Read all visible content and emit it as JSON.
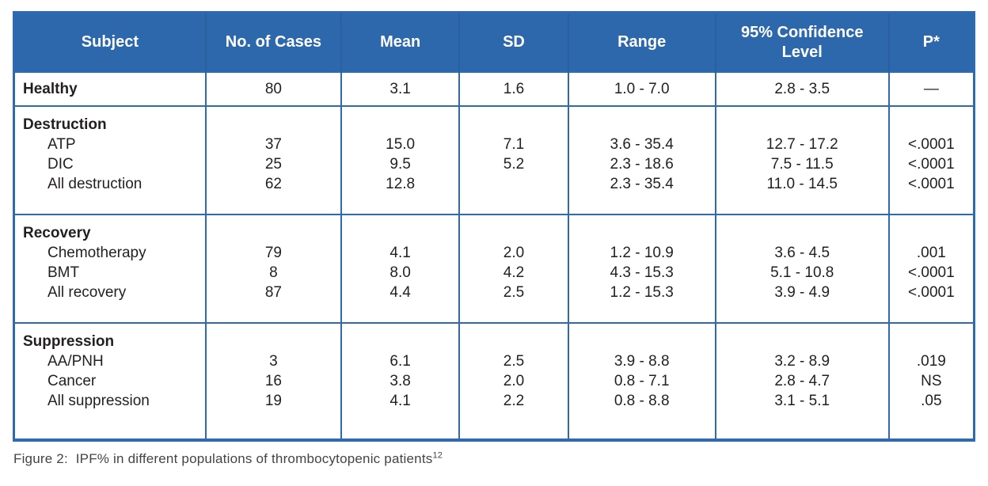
{
  "colors": {
    "primary_blue": "#2d68ad",
    "border_blue": "#2f6ab0",
    "header_text": "#ffffff",
    "body_text": "#231f20"
  },
  "table": {
    "columns": [
      {
        "key": "subject",
        "label": "Subject",
        "width_pct": 19.9
      },
      {
        "key": "cases",
        "label": "No. of Cases",
        "width_pct": 14.15
      },
      {
        "key": "mean",
        "label": "Mean",
        "width_pct": 12.34
      },
      {
        "key": "sd",
        "label": "SD",
        "width_pct": 11.35
      },
      {
        "key": "range",
        "label": "Range",
        "width_pct": 15.38
      },
      {
        "key": "ci",
        "label": "95% Confidence Level",
        "width_pct": 18.1
      },
      {
        "key": "p",
        "label": "P*",
        "width_pct": 8.78
      }
    ],
    "sections": [
      {
        "label": "Healthy",
        "values": {
          "cases": "80",
          "mean": "3.1",
          "sd": "1.6",
          "range": "1.0 - 7.0",
          "ci": "2.8 - 3.5",
          "p": "—"
        },
        "rows": []
      },
      {
        "label": "Destruction",
        "rows": [
          {
            "subject": "ATP",
            "cases": "37",
            "mean": "15.0",
            "sd": "7.1",
            "range": "3.6 - 35.4",
            "ci": "12.7 - 17.2",
            "p": "<.0001"
          },
          {
            "subject": "DIC",
            "cases": "25",
            "mean": "9.5",
            "sd": "5.2",
            "range": "2.3 - 18.6",
            "ci": "7.5 - 11.5",
            "p": "<.0001"
          },
          {
            "subject": "All destruction",
            "cases": "62",
            "mean": "12.8",
            "sd": "",
            "range": "2.3 - 35.4",
            "ci": "11.0 - 14.5",
            "p": "<.0001"
          }
        ]
      },
      {
        "label": "Recovery",
        "rows": [
          {
            "subject": "Chemotherapy",
            "cases": "79",
            "mean": "4.1",
            "sd": "2.0",
            "range": "1.2 - 10.9",
            "ci": "3.6 - 4.5",
            "p": ".001"
          },
          {
            "subject": "BMT",
            "cases": "8",
            "mean": "8.0",
            "sd": "4.2",
            "range": "4.3 - 15.3",
            "ci": "5.1 - 10.8",
            "p": "<.0001"
          },
          {
            "subject": "All recovery",
            "cases": "87",
            "mean": "4.4",
            "sd": "2.5",
            "range": "1.2 - 15.3",
            "ci": "3.9 - 4.9",
            "p": "<.0001"
          }
        ]
      },
      {
        "label": "Suppression",
        "rows": [
          {
            "subject": "AA/PNH",
            "cases": "3",
            "mean": "6.1",
            "sd": "2.5",
            "range": "3.9 - 8.8",
            "ci": "3.2 - 8.9",
            "p": ".019"
          },
          {
            "subject": "Cancer",
            "cases": "16",
            "mean": "3.8",
            "sd": "2.0",
            "range": "0.8 - 7.1",
            "ci": "2.8 - 4.7",
            "p": "NS"
          },
          {
            "subject": "All suppression",
            "cases": "19",
            "mean": "4.1",
            "sd": "2.2",
            "range": "0.8 - 8.8",
            "ci": "3.1 - 5.1",
            "p": ".05"
          }
        ]
      }
    ]
  },
  "caption": {
    "text": "Figure 2:  IPF% in different populations of thrombocytopenic patients",
    "superscript": "12"
  },
  "chart_data": {
    "type": "table",
    "title": "IPF% in different populations of thrombocytopenic patients",
    "columns": [
      "Subject",
      "No. of Cases",
      "Mean",
      "SD",
      "Range",
      "95% Confidence Level",
      "P*"
    ],
    "rows": [
      [
        "Healthy",
        "80",
        "3.1",
        "1.6",
        "1.0 - 7.0",
        "2.8 - 3.5",
        "—"
      ],
      [
        "Destruction: ATP",
        "37",
        "15.0",
        "7.1",
        "3.6 - 35.4",
        "12.7 - 17.2",
        "<.0001"
      ],
      [
        "Destruction: DIC",
        "25",
        "9.5",
        "5.2",
        "2.3 - 18.6",
        "7.5 - 11.5",
        "<.0001"
      ],
      [
        "Destruction: All destruction",
        "62",
        "12.8",
        "",
        "2.3 - 35.4",
        "11.0 - 14.5",
        "<.0001"
      ],
      [
        "Recovery: Chemotherapy",
        "79",
        "4.1",
        "2.0",
        "1.2 - 10.9",
        "3.6 - 4.5",
        ".001"
      ],
      [
        "Recovery: BMT",
        "8",
        "8.0",
        "4.2",
        "4.3 - 15.3",
        "5.1 - 10.8",
        "<.0001"
      ],
      [
        "Recovery: All recovery",
        "87",
        "4.4",
        "2.5",
        "1.2 - 15.3",
        "3.9 - 4.9",
        "<.0001"
      ],
      [
        "Suppression: AA/PNH",
        "3",
        "6.1",
        "2.5",
        "3.9 - 8.8",
        "3.2 - 8.9",
        ".019"
      ],
      [
        "Suppression: Cancer",
        "16",
        "3.8",
        "2.0",
        "0.8 - 7.1",
        "2.8 - 4.7",
        "NS"
      ],
      [
        "Suppression: All suppression",
        "19",
        "4.1",
        "2.2",
        "0.8 - 8.8",
        "3.1 - 5.1",
        ".05"
      ]
    ]
  }
}
